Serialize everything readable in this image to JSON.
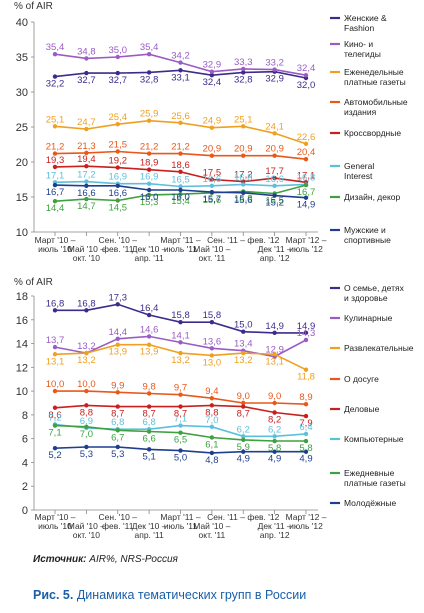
{
  "source": {
    "prefix": "Источник:",
    "text": "AIR%, NRS-Россия"
  },
  "caption": {
    "label": "Рис. 5.",
    "text": "Динамика тематических групп в России"
  },
  "chart_data": [
    {
      "type": "line",
      "ylabel": "% of AIR",
      "ylim": [
        10,
        40
      ],
      "yticks": [
        10,
        15,
        20,
        25,
        30,
        35,
        40
      ],
      "grid": false,
      "legend": "right",
      "x_ticks": [
        {
          "top": "Март '10 –",
          "bottom": "июль '10"
        },
        {
          "top": "Май '10 –",
          "bottom": "окт. '10"
        },
        {
          "top": "Сен. '10 –",
          "bottom": "фев. '11"
        },
        {
          "top": "Дек '10 –",
          "bottom": "апр. '11"
        },
        {
          "top": "Март '11 –",
          "bottom": "июль '11"
        },
        {
          "top": "Май '10 –",
          "bottom": "окт. '11"
        },
        {
          "top": "Сен. '11 – фев. '12",
          "bottom": ""
        },
        {
          "top": "Дек '11 –",
          "bottom": "апр. '12"
        },
        {
          "top": "Март '12 –",
          "bottom": "июль '12"
        }
      ],
      "series": [
        {
          "name": "Женские & Fashion",
          "color": "#3d2a8c",
          "values": [
            32.2,
            32.7,
            32.7,
            32.8,
            33.1,
            32.4,
            32.8,
            32.9,
            32.0
          ]
        },
        {
          "name": "Кино- и телегиды",
          "color": "#9a5cc4",
          "values": [
            35.4,
            34.8,
            35.0,
            35.4,
            34.2,
            32.9,
            33.3,
            33.2,
            32.4
          ]
        },
        {
          "name": "Еженедельные платные газеты",
          "color": "#f0a020",
          "values": [
            25.1,
            24.7,
            25.4,
            25.9,
            25.6,
            24.9,
            25.1,
            24.1,
            22.6
          ]
        },
        {
          "name": "Автомобильные издания",
          "color": "#e8581a",
          "values": [
            21.2,
            21.3,
            21.5,
            21.2,
            21.2,
            20.9,
            20.9,
            20.9,
            20.4
          ]
        },
        {
          "name": "Кроссвордные",
          "color": "#c8201e",
          "values": [
            19.3,
            19.4,
            19.2,
            18.9,
            18.6,
            17.5,
            17.2,
            17.7,
            17.1
          ]
        },
        {
          "name": "General Interest",
          "color": "#5cc0dc",
          "values": [
            17.1,
            17.2,
            16.9,
            16.9,
            16.5,
            16.6,
            16.8,
            16.6,
            16.8
          ]
        },
        {
          "name": "Дизайн, декор",
          "color": "#3ea040",
          "values": [
            14.4,
            14.7,
            14.5,
            15.3,
            15.4,
            15.6,
            15.8,
            15.5,
            16.7
          ]
        },
        {
          "name": "Мужские и спортивные",
          "color": "#1f3f8e",
          "values": [
            16.7,
            16.6,
            16.6,
            16.0,
            16.0,
            15.7,
            15.6,
            15.2,
            14.9
          ]
        }
      ]
    },
    {
      "type": "line",
      "ylabel": "% of AIR",
      "ylim": [
        0,
        18
      ],
      "yticks": [
        0,
        2,
        4,
        6,
        8,
        10,
        12,
        14,
        16,
        18
      ],
      "grid": false,
      "legend": "right",
      "x_ticks": [
        {
          "top": "Март '10 –",
          "bottom": "июль '10"
        },
        {
          "top": "Май '10 –",
          "bottom": "окт. '10"
        },
        {
          "top": "Сен. '10 –",
          "bottom": "фев. '11"
        },
        {
          "top": "Дек '10 –",
          "bottom": "апр. '11"
        },
        {
          "top": "Март '11 –",
          "bottom": "июль '11"
        },
        {
          "top": "Май '10 –",
          "bottom": "окт. '11"
        },
        {
          "top": "Сен. '11 – фев. '12",
          "bottom": ""
        },
        {
          "top": "Дек '11 –",
          "bottom": "апр. '12"
        },
        {
          "top": "Март '12 –",
          "bottom": "июль '12"
        }
      ],
      "series": [
        {
          "name": "О семье, детях и здоровье",
          "color": "#3d2a8c",
          "values": [
            16.8,
            16.8,
            17.3,
            16.4,
            15.8,
            15.8,
            15.0,
            14.9,
            14.9
          ]
        },
        {
          "name": "Кулинарные",
          "color": "#9a5cc4",
          "values": [
            13.7,
            13.2,
            14.4,
            14.6,
            14.1,
            13.6,
            13.4,
            12.9,
            14.3
          ]
        },
        {
          "name": "Развлекательные",
          "color": "#f0a020",
          "values": [
            13.1,
            13.2,
            13.9,
            13.9,
            13.2,
            13.0,
            13.2,
            13.1,
            11.8
          ]
        },
        {
          "name": "О досуге",
          "color": "#e8581a",
          "values": [
            10.0,
            10.0,
            9.9,
            9.8,
            9.7,
            9.4,
            9.0,
            9.0,
            8.9
          ]
        },
        {
          "name": "Деловые",
          "color": "#c8201e",
          "values": [
            8.6,
            8.8,
            8.7,
            8.7,
            8.7,
            8.8,
            8.7,
            8.2,
            7.9
          ]
        },
        {
          "name": "Компьютерные",
          "color": "#5cc0dc",
          "values": [
            7.2,
            6.9,
            6.8,
            6.8,
            7.1,
            7.0,
            6.2,
            6.2,
            6.4
          ]
        },
        {
          "name": "Ежедневные платные газеты",
          "color": "#3ea040",
          "values": [
            7.1,
            7.0,
            6.7,
            6.6,
            6.5,
            6.1,
            5.9,
            5.8,
            5.8
          ]
        },
        {
          "name": "Молодёжные",
          "color": "#1f3f8e",
          "values": [
            5.2,
            5.3,
            5.3,
            5.1,
            5.0,
            4.8,
            4.9,
            4.9,
            4.9
          ]
        }
      ]
    }
  ]
}
